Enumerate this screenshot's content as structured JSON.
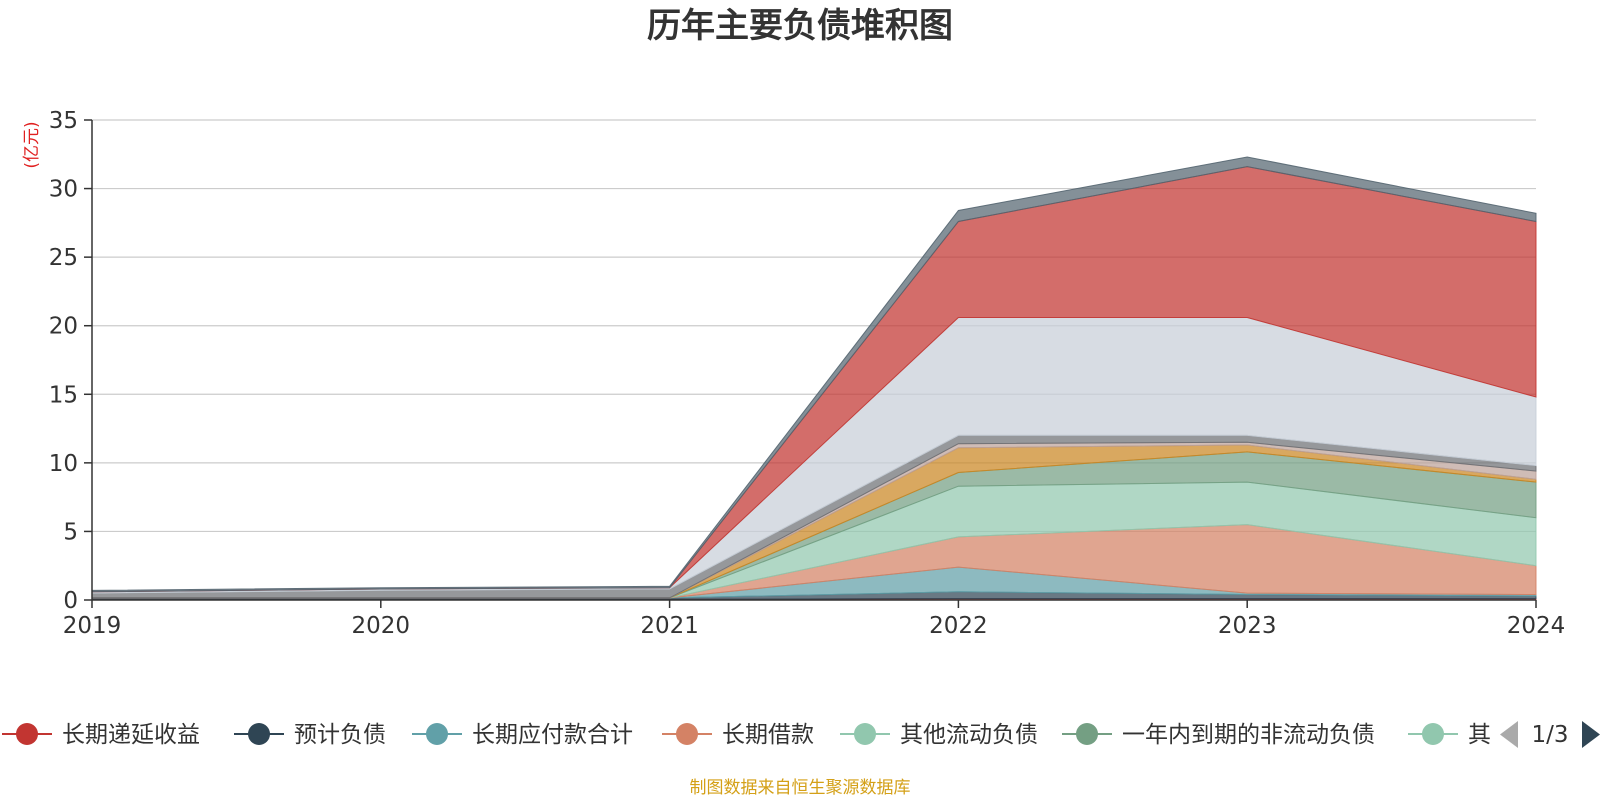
{
  "chart_data": {
    "type": "area",
    "title": "历年主要负债堆积图",
    "ylabel": "(亿元)",
    "x": [
      "2019",
      "2020",
      "2021",
      "2022",
      "2023",
      "2024"
    ],
    "ylim": [
      0,
      35
    ],
    "yticks": [
      0,
      5,
      10,
      15,
      20,
      25,
      30,
      35
    ],
    "grid": true,
    "stacked": true,
    "series": [
      {
        "name": "长期递延收益",
        "color": "#c23531",
        "values": [
          0.05,
          0.05,
          0.05,
          0.1,
          0.1,
          0.1
        ]
      },
      {
        "name": "预计负债",
        "color": "#2f4554",
        "values": [
          0.1,
          0.1,
          0.1,
          0.5,
          0.3,
          0.2
        ]
      },
      {
        "name": "长期应付款合计",
        "color": "#61a0a8",
        "values": [
          0.0,
          0.0,
          0.0,
          1.8,
          0.1,
          0.1
        ]
      },
      {
        "name": "长期借款",
        "color": "#d48265",
        "values": [
          0.0,
          0.0,
          0.0,
          2.2,
          5.0,
          2.1
        ]
      },
      {
        "name": "其他流动负债",
        "color": "#91c7ae",
        "values": [
          0.0,
          0.0,
          0.0,
          3.7,
          3.1,
          3.5
        ]
      },
      {
        "name": "一年内到期的非流动负债",
        "color": "#749f83",
        "values": [
          0.0,
          0.0,
          0.0,
          1.0,
          2.2,
          2.6
        ]
      },
      {
        "name": "其他",
        "color": "#ca8622",
        "values": [
          0.0,
          0.0,
          0.0,
          1.8,
          0.5,
          0.2
        ]
      },
      {
        "name": "",
        "color": "#bda29a",
        "values": [
          0.0,
          0.0,
          0.0,
          0.3,
          0.2,
          0.6
        ]
      },
      {
        "name": "",
        "color": "#6e7074",
        "values": [
          0.35,
          0.55,
          0.65,
          0.6,
          0.5,
          0.4
        ]
      },
      {
        "name": "",
        "color": "#c8cfd8",
        "values": [
          0.1,
          0.1,
          0.1,
          8.6,
          8.6,
          5.0
        ]
      },
      {
        "name": "",
        "color": "#c23531",
        "values": [
          0.0,
          0.0,
          0.0,
          7.0,
          11.0,
          12.8
        ]
      },
      {
        "name": "",
        "color": "#546570",
        "values": [
          0.1,
          0.1,
          0.1,
          0.8,
          0.7,
          0.6
        ]
      }
    ],
    "legend": {
      "position": "bottom",
      "visible_items": [
        "长期递延收益",
        "预计负债",
        "长期应付款合计",
        "长期借款",
        "其他流动负债",
        "一年内到期的非流动负债",
        "其"
      ],
      "page": "1/3"
    }
  },
  "source_note": "制图数据来自恒生聚源数据库"
}
